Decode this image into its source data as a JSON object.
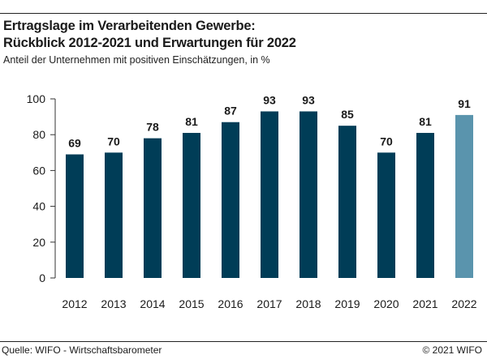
{
  "header": {
    "title_line1": "Ertragslage im Verarbeitenden Gewerbe:",
    "title_line2": "Rückblick 2012-2021 und Erwartungen für 2022",
    "subtitle": "Anteil der Unternehmen mit positiven Einschätzungen, in %"
  },
  "footer": {
    "source": "Quelle: WIFO - Wirtschaftsbarometer",
    "copyright": "© 2021 WIFO"
  },
  "colors": {
    "actual": "#003d57",
    "expectation": "#5a94ad",
    "axis": "#333333"
  },
  "chart_data": {
    "type": "bar",
    "categories": [
      "2012",
      "2013",
      "2014",
      "2015",
      "2016",
      "2017",
      "2018",
      "2019",
      "2020",
      "2021",
      "2022"
    ],
    "values": [
      69,
      70,
      78,
      81,
      87,
      93,
      93,
      85,
      70,
      81,
      91
    ],
    "data_labels": [
      "69",
      "70",
      "78",
      "81",
      "87",
      "93",
      "93",
      "85",
      "70",
      "81",
      "91"
    ],
    "highlight_category": "2022",
    "ylim": [
      0,
      100
    ],
    "yticks": [
      0,
      20,
      40,
      60,
      80,
      100
    ],
    "grid": false,
    "xlabel": "",
    "ylabel": ""
  }
}
